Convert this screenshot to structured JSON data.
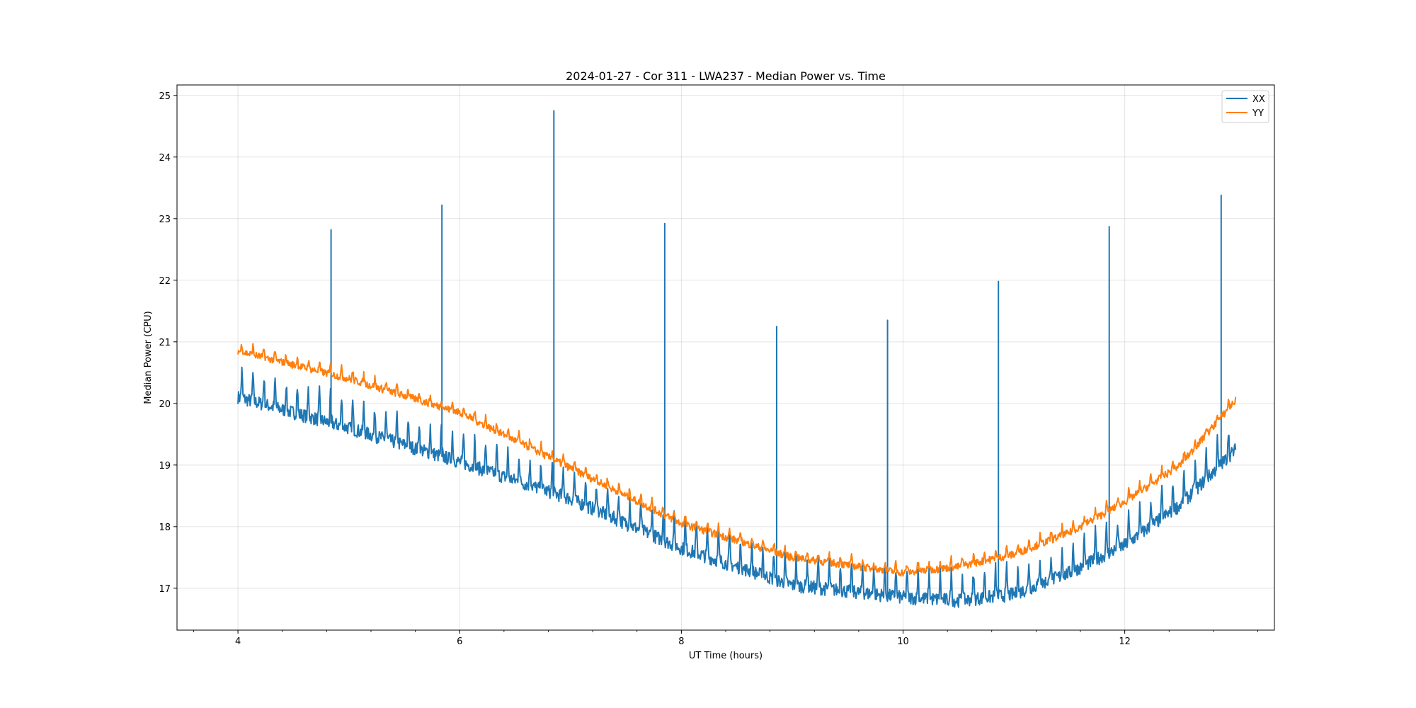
{
  "chart_data": {
    "type": "line",
    "title": "2024-01-27 - Cor 311 - LWA237 - Median Power vs. Time",
    "xlabel": "UT Time (hours)",
    "ylabel": "Median Power (CPU)",
    "xlim": [
      3.45,
      13.35
    ],
    "ylim": [
      16.32,
      25.17
    ],
    "xticks": [
      4,
      6,
      8,
      10,
      12
    ],
    "xtick_labels": [
      "4",
      "6",
      "8",
      "10",
      "12"
    ],
    "yticks": [
      17,
      18,
      19,
      20,
      21,
      22,
      23,
      24,
      25
    ],
    "ytick_labels": [
      "17",
      "18",
      "19",
      "20",
      "21",
      "22",
      "23",
      "24",
      "25"
    ],
    "grid": true,
    "legend_position": "upper right",
    "x_range": [
      4.0,
      13.0
    ],
    "series": [
      {
        "name": "XX",
        "color": "#1f77b4",
        "baseline": [
          [
            4.0,
            20.1
          ],
          [
            5.0,
            19.6
          ],
          [
            6.0,
            19.05
          ],
          [
            7.0,
            18.45
          ],
          [
            8.0,
            17.65
          ],
          [
            9.0,
            17.05
          ],
          [
            10.0,
            16.85
          ],
          [
            10.5,
            16.8
          ],
          [
            11.0,
            16.9
          ],
          [
            11.5,
            17.25
          ],
          [
            12.0,
            17.7
          ],
          [
            12.5,
            18.35
          ],
          [
            13.0,
            19.25
          ]
        ],
        "spikes": [
          {
            "x": 4.84,
            "y": 22.82
          },
          {
            "x": 5.84,
            "y": 23.22
          },
          {
            "x": 6.85,
            "y": 24.75
          },
          {
            "x": 7.85,
            "y": 22.92
          },
          {
            "x": 8.86,
            "y": 21.25
          },
          {
            "x": 9.86,
            "y": 21.35
          },
          {
            "x": 10.86,
            "y": 21.98
          },
          {
            "x": 11.86,
            "y": 22.87
          },
          {
            "x": 12.87,
            "y": 23.38
          }
        ]
      },
      {
        "name": "YY",
        "color": "#ff7f0e",
        "baseline": [
          [
            4.0,
            20.85
          ],
          [
            5.0,
            20.4
          ],
          [
            6.0,
            19.85
          ],
          [
            7.0,
            18.95
          ],
          [
            8.0,
            18.05
          ],
          [
            9.0,
            17.5
          ],
          [
            10.0,
            17.25
          ],
          [
            10.5,
            17.35
          ],
          [
            11.0,
            17.55
          ],
          [
            11.5,
            17.9
          ],
          [
            12.0,
            18.4
          ],
          [
            12.5,
            19.0
          ],
          [
            13.0,
            20.05
          ]
        ]
      }
    ]
  }
}
